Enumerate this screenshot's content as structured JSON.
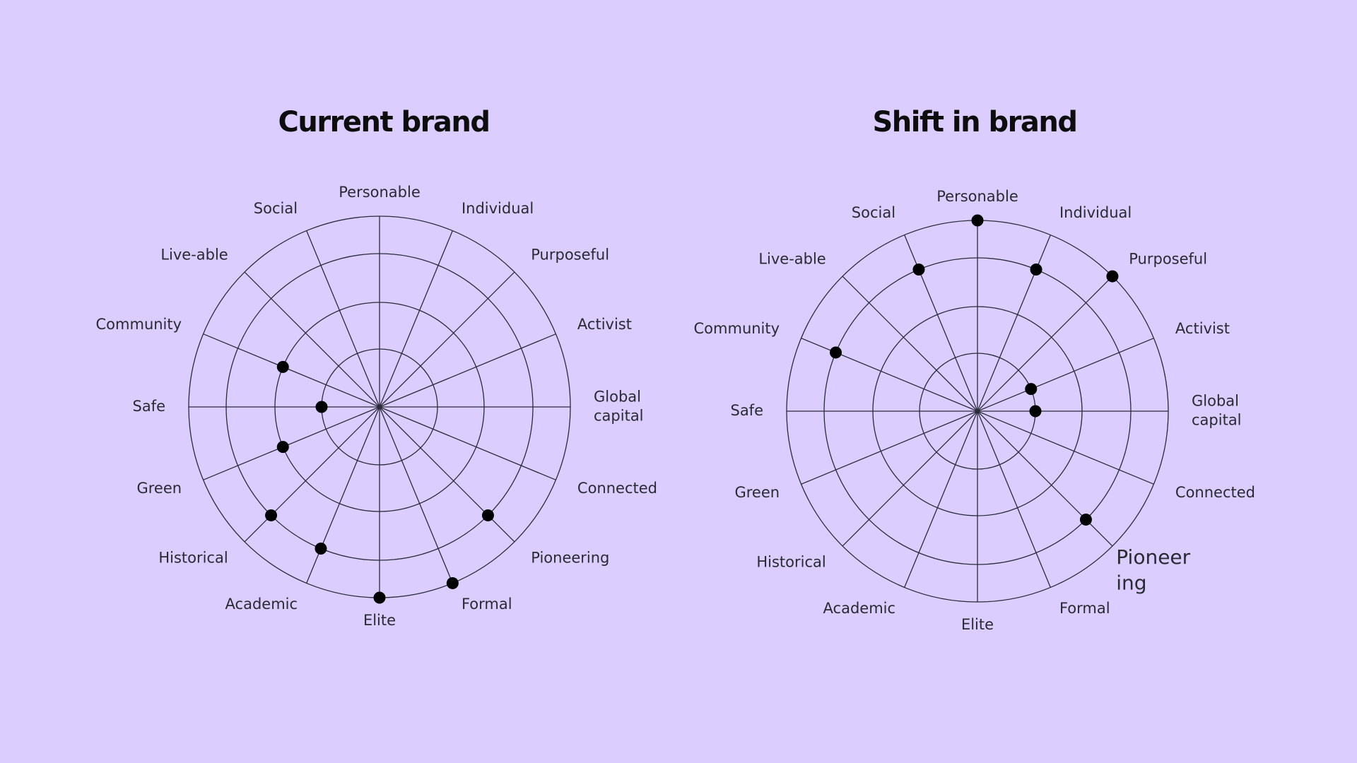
{
  "chart_data": [
    {
      "type": "radar",
      "title": "Current brand",
      "rings": 4,
      "categories": [
        "Personable",
        "Individual",
        "Purposeful",
        "Activist",
        "Global capital",
        "Connected",
        "Pioneering",
        "Formal",
        "Elite",
        "Academic",
        "Historical",
        "Green",
        "Safe",
        "Community",
        "Live-able",
        "Social"
      ],
      "values": [
        null,
        null,
        null,
        null,
        null,
        null,
        3,
        4,
        4,
        3,
        3,
        2,
        1,
        2,
        null,
        null
      ]
    },
    {
      "type": "radar",
      "title": "Shift in brand",
      "rings": 4,
      "categories": [
        "Personable",
        "Individual",
        "Purposeful",
        "Activist",
        "Global capital",
        "Connected",
        "Pioneer ing",
        "Formal",
        "Elite",
        "Academic",
        "Historical",
        "Green",
        "Safe",
        "Community",
        "Live-able",
        "Social"
      ],
      "values": [
        4,
        3,
        4,
        1,
        1,
        null,
        3,
        null,
        null,
        null,
        null,
        null,
        null,
        3,
        null,
        3
      ]
    }
  ],
  "colors": {
    "background": "#dccdff",
    "lines": "#2b2b3a",
    "markers": "#000000"
  }
}
